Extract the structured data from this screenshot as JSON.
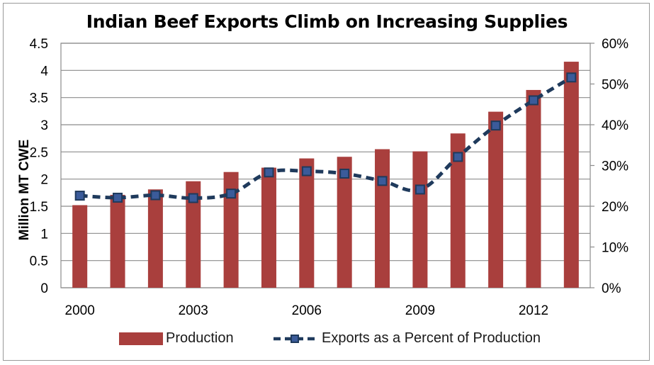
{
  "chart_data": {
    "type": "bar+line",
    "title": "Indian Beef Exports Climb on Increasing Supplies",
    "xlabel": "",
    "ylabel": "Million MT CWE",
    "ylim": [
      0,
      4.5
    ],
    "y2lim": [
      0,
      60
    ],
    "yticks": [
      "0",
      "0.5",
      "1",
      "1.5",
      "2",
      "2.5",
      "3",
      "3.5",
      "4",
      "4.5"
    ],
    "y2ticks": [
      "0%",
      "10%",
      "20%",
      "30%",
      "40%",
      "50%",
      "60%"
    ],
    "categories": [
      "2000",
      "2001",
      "2002",
      "2003",
      "2004",
      "2005",
      "2006",
      "2007",
      "2008",
      "2009",
      "2010",
      "2011",
      "2012",
      "2013"
    ],
    "xtick_labels": [
      "2000",
      "",
      "",
      "2003",
      "",
      "",
      "2006",
      "",
      "",
      "2009",
      "",
      "",
      "2012",
      ""
    ],
    "grid": true,
    "legend_position": "bottom",
    "series": [
      {
        "name": "Production",
        "kind": "bar",
        "axis": "left",
        "color": "#a93f3d",
        "values": [
          1.52,
          1.71,
          1.81,
          1.96,
          2.13,
          2.21,
          2.38,
          2.41,
          2.55,
          2.51,
          2.84,
          3.24,
          3.64,
          4.16
        ]
      },
      {
        "name": "Exports as a Percent of Production",
        "kind": "line",
        "axis": "right",
        "color": "#1f3a5c",
        "marker_fill": "#3b5b9a",
        "values": [
          22.6,
          22.1,
          22.7,
          22.0,
          23.1,
          28.3,
          28.6,
          28.0,
          26.2,
          24.1,
          32.1,
          39.8,
          46.0,
          51.6
        ]
      }
    ]
  }
}
